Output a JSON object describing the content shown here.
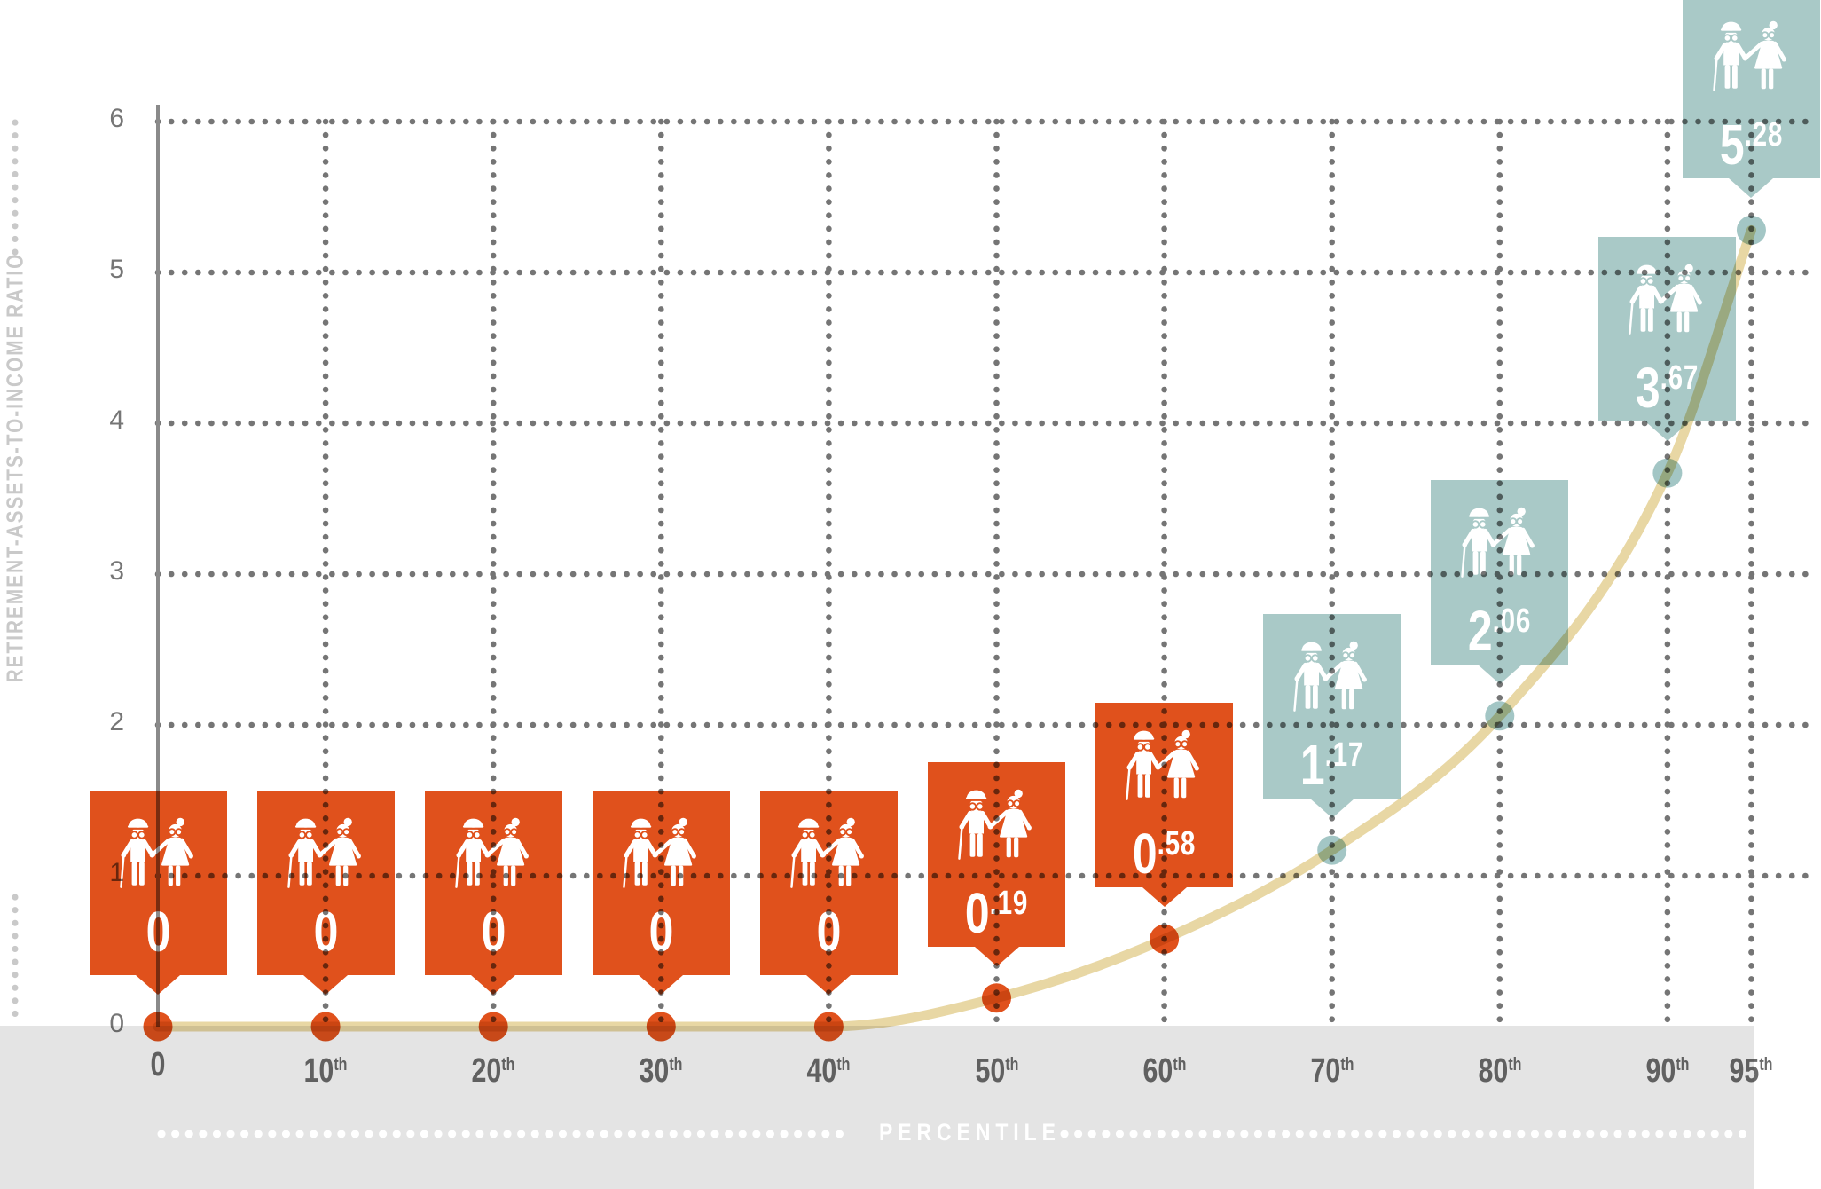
{
  "chart_data": {
    "type": "line",
    "x_percentiles": [
      0,
      10,
      20,
      30,
      40,
      50,
      60,
      70,
      80,
      90,
      95
    ],
    "values": [
      0,
      0,
      0,
      0,
      0,
      0.19,
      0.58,
      1.17,
      2.06,
      3.67,
      5.28
    ],
    "xlabel": "PERCENTILE",
    "ylabel": "RETIREMENT-ASSETS-TO-INCOME RATIO",
    "ylim": [
      0,
      6
    ],
    "yticks": [
      "6",
      "5",
      "4",
      "3",
      "2",
      "1",
      "0"
    ],
    "xtick_labels": [
      "0",
      "10th",
      "20th",
      "30th",
      "40th",
      "50th",
      "60th",
      "70th",
      "80th",
      "90th",
      "95th"
    ],
    "grid": "dotted",
    "legend": "none",
    "callouts": [
      {
        "percentile": "0",
        "value": "0",
        "int": "0",
        "dec": null,
        "theme": "orange"
      },
      {
        "percentile": "10th",
        "value": "0",
        "int": "0",
        "dec": null,
        "theme": "orange"
      },
      {
        "percentile": "20th",
        "value": "0",
        "int": "0",
        "dec": null,
        "theme": "orange"
      },
      {
        "percentile": "30th",
        "value": "0",
        "int": "0",
        "dec": null,
        "theme": "orange"
      },
      {
        "percentile": "40th",
        "value": "0",
        "int": "0",
        "dec": null,
        "theme": "orange"
      },
      {
        "percentile": "50th",
        "value": "0.19",
        "int": "0",
        "dec": "19",
        "theme": "orange"
      },
      {
        "percentile": "60th",
        "value": "0.58",
        "int": "0",
        "dec": "58",
        "theme": "orange"
      },
      {
        "percentile": "70th",
        "value": "1.17",
        "int": "1",
        "dec": "17",
        "theme": "teal"
      },
      {
        "percentile": "80th",
        "value": "2.06",
        "int": "2",
        "dec": "06",
        "theme": "teal"
      },
      {
        "percentile": "90th",
        "value": "3.67",
        "int": "3",
        "dec": "67",
        "theme": "teal"
      },
      {
        "percentile": "95th",
        "value": "5.28",
        "int": "5",
        "dec": "28",
        "theme": "teal"
      }
    ]
  },
  "axes": {
    "y_title": "RETIREMENT-ASSETS-TO-INCOME RATIO",
    "x_title": "PERCENTILE"
  },
  "icons": {
    "callout_icon": "elderly-couple-icon"
  },
  "colors": {
    "orange": "#E0511C",
    "teal": "#A9C9C7",
    "teal_dot": "#A3C6C5",
    "orange_dot": "#E0511C",
    "line": "#E8D7A4",
    "band": "#E4E4E4",
    "grid_dot": "#757575",
    "axis_line": "#8A8A8A",
    "x_tick_text": "#6B6B6B",
    "y_tick_text": "#767676",
    "y_title_text": "#C9C9C9",
    "x_title_text": "#FFFFFF",
    "value_text": "#FFFFFF",
    "icon": "#FFFFFF"
  }
}
